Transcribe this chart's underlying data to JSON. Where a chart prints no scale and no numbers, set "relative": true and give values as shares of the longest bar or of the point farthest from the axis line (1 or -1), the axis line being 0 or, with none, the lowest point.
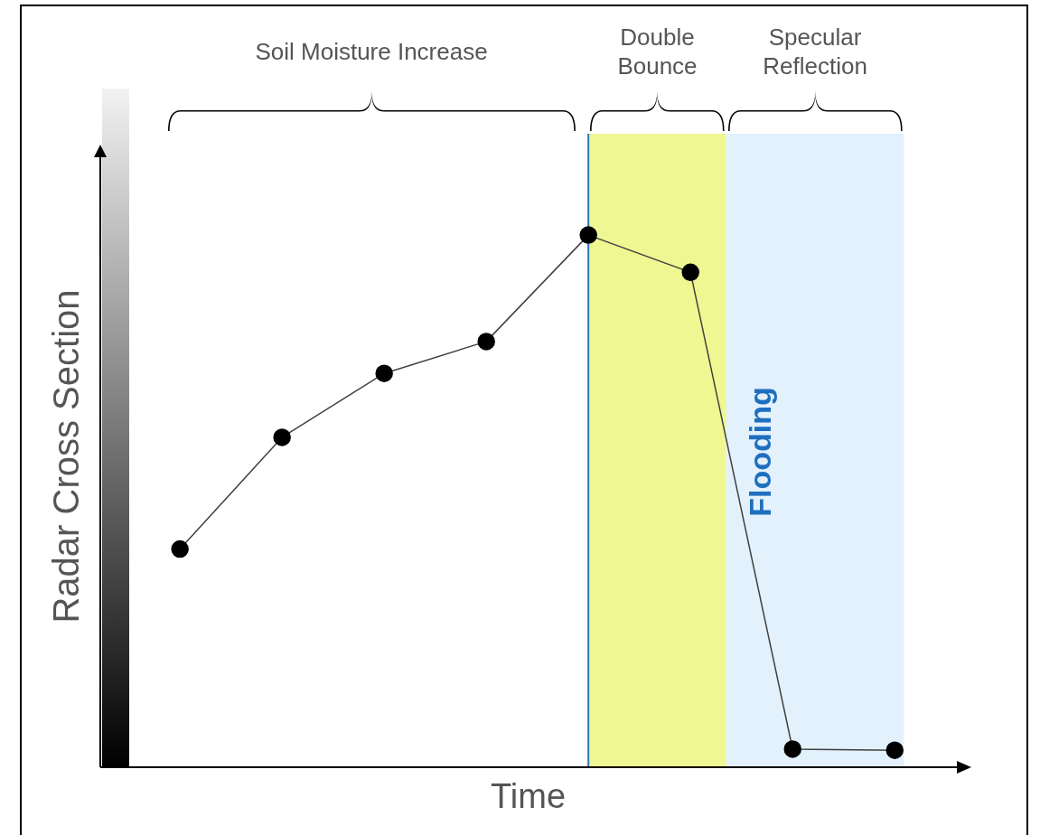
{
  "chart_data": {
    "type": "line",
    "relative": true,
    "xlabel": "Time",
    "ylabel": "Radar Cross Section",
    "categories": [
      null,
      null,
      null,
      null,
      null,
      null,
      null,
      null
    ],
    "series": [
      {
        "color": "#404040",
        "values": [
          0.41,
          0.62,
          0.74,
          0.8,
          1,
          0.93,
          0.034,
          0.032
        ]
      }
    ],
    "marker": "circle",
    "line_style": "solid",
    "legend": false,
    "annotations": [
      "Soil Moisture Increase",
      "Double Bounce",
      "Specular Reflection",
      "Flooding"
    ]
  }
}
